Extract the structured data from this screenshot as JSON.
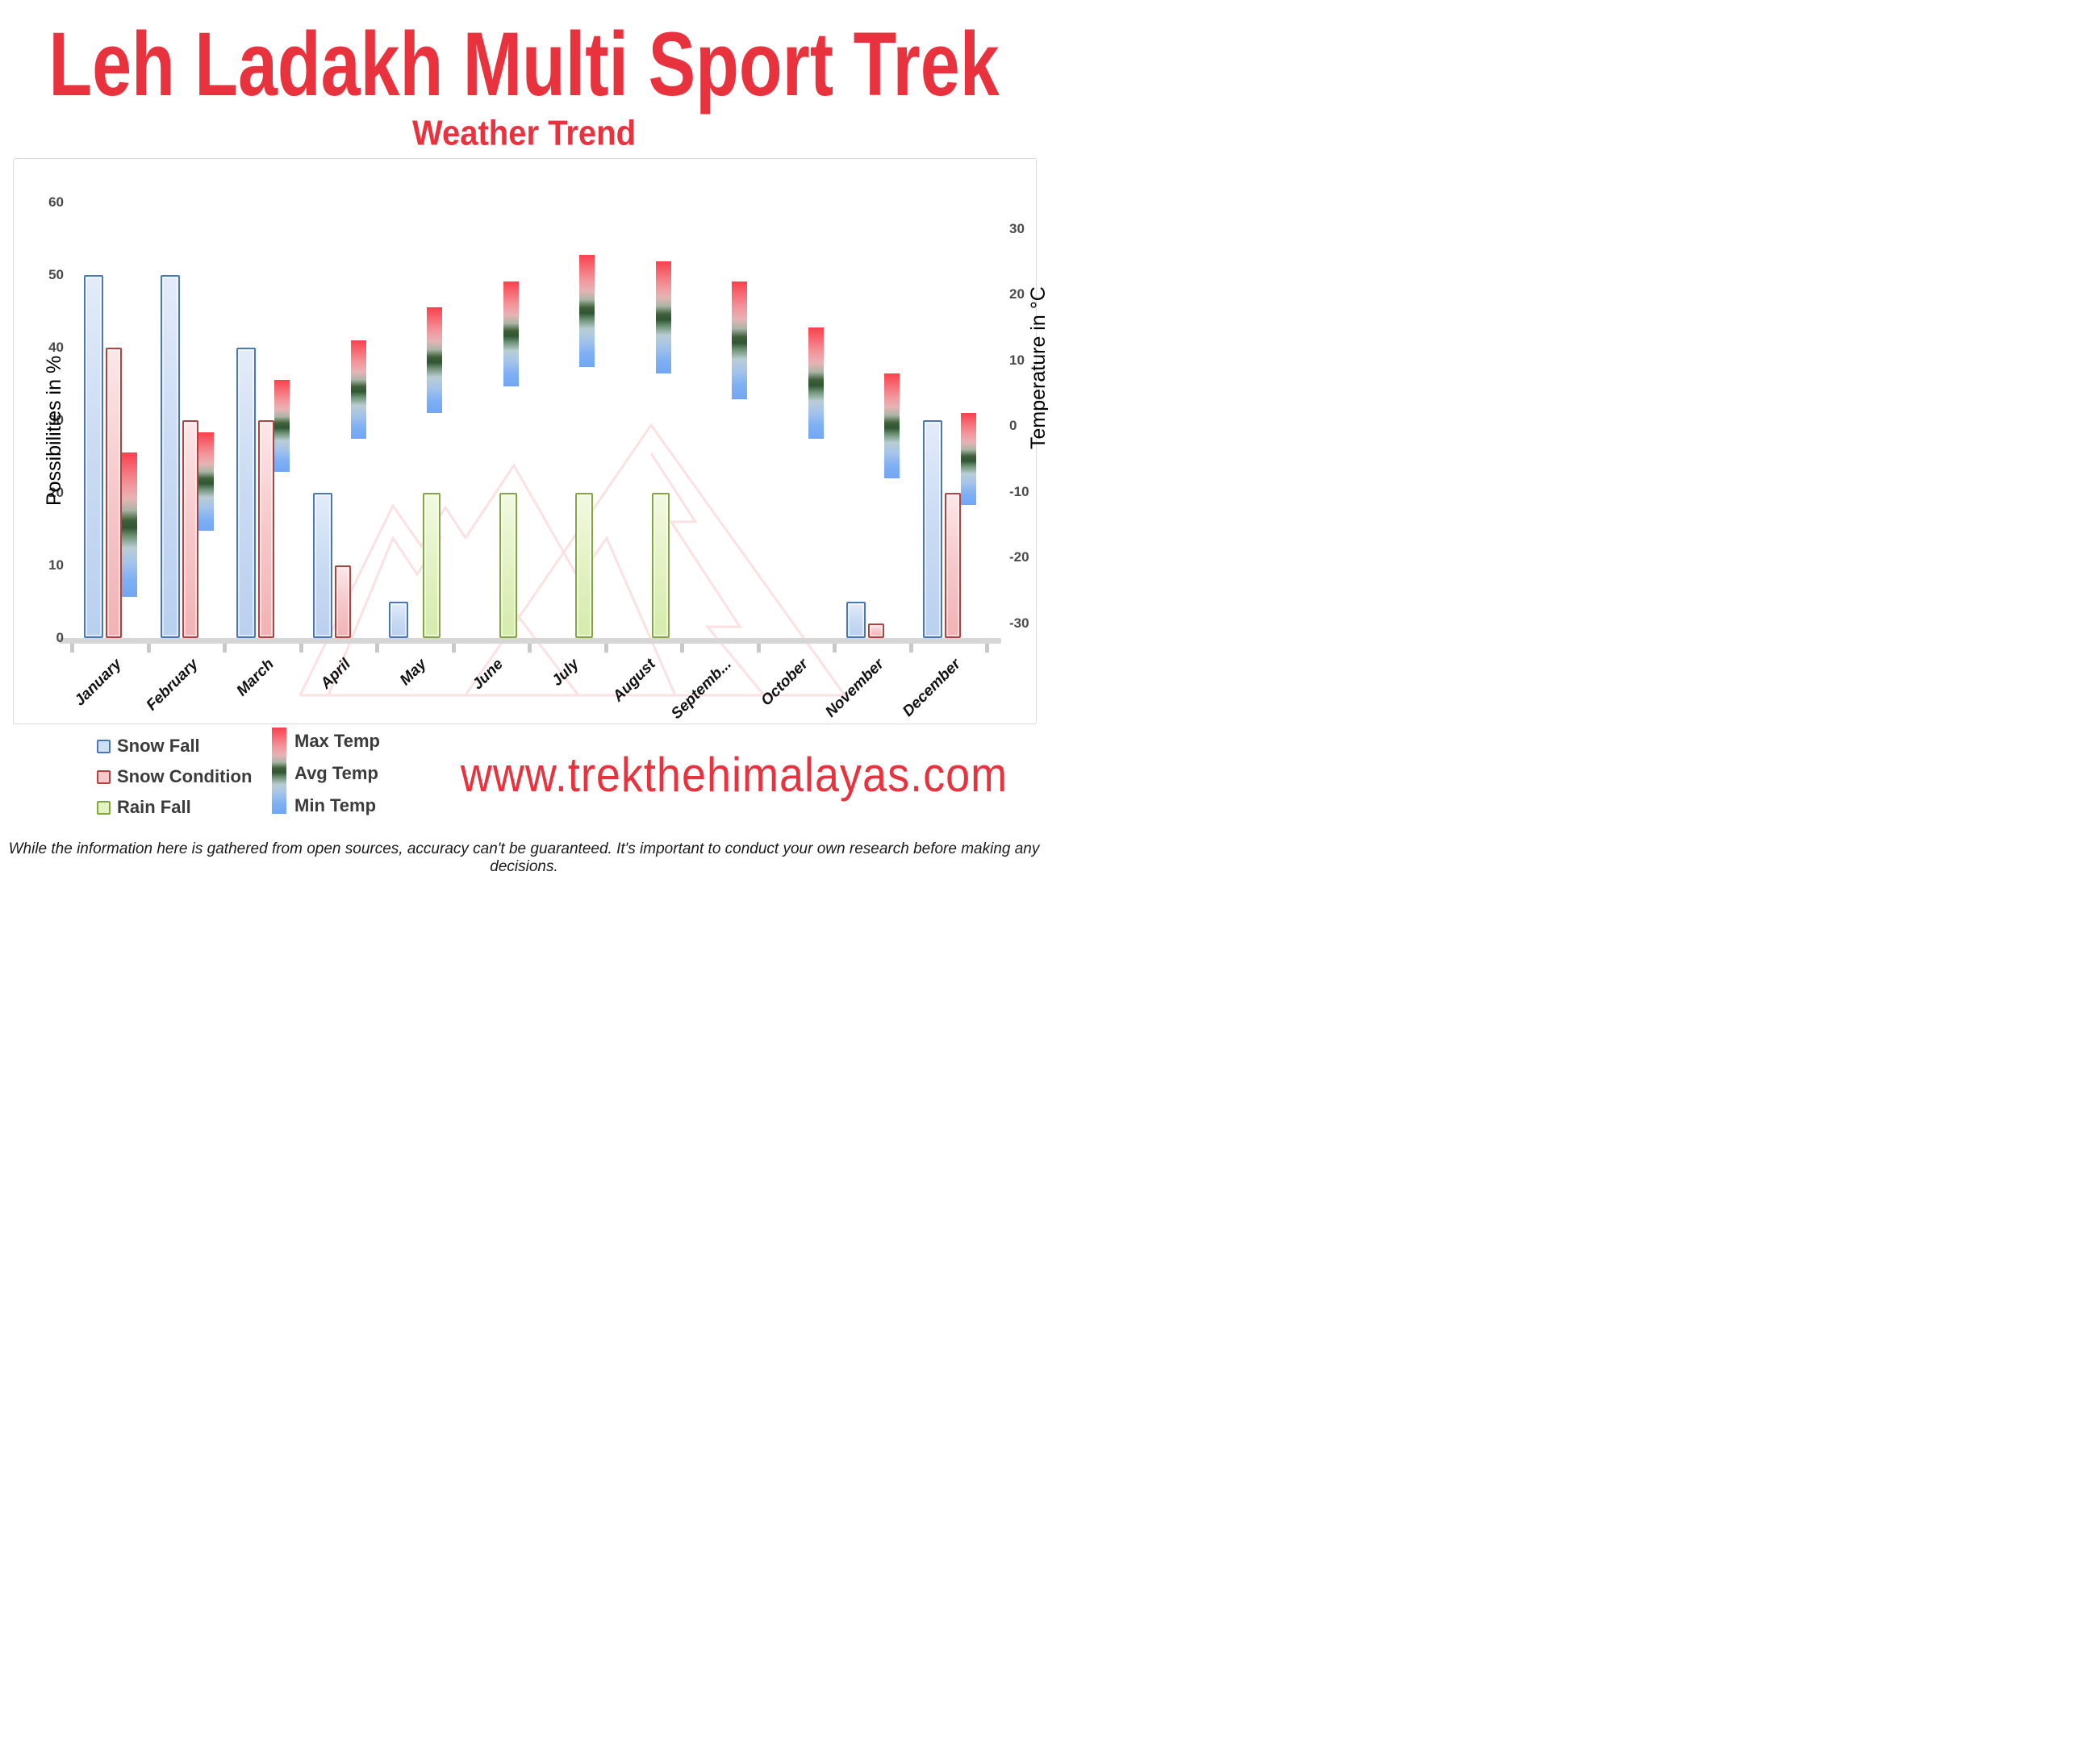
{
  "header": {
    "title": "Leh Ladakh Multi Sport Trek",
    "subtitle": "Weather Trend"
  },
  "chart_data": {
    "type": "bar",
    "title": "Weather Trend",
    "categories": [
      "January",
      "February",
      "March",
      "April",
      "May",
      "June",
      "July",
      "August",
      "September",
      "October",
      "November",
      "December"
    ],
    "category_display_labels": [
      "January",
      "February",
      "March",
      "April",
      "May",
      "June",
      "July",
      "August",
      "Septemb...",
      "October",
      "November",
      "December"
    ],
    "series": [
      {
        "name": "Snow Fall",
        "unit": "%",
        "axis": "left",
        "values": [
          50,
          50,
          40,
          20,
          5,
          0,
          0,
          0,
          0,
          0,
          5,
          30
        ]
      },
      {
        "name": "Snow Condition",
        "unit": "%",
        "axis": "left",
        "values": [
          40,
          30,
          30,
          10,
          0,
          0,
          0,
          0,
          0,
          0,
          2,
          20
        ]
      },
      {
        "name": "Rain Fall",
        "unit": "%",
        "axis": "left",
        "values": [
          0,
          0,
          0,
          0,
          20,
          20,
          20,
          20,
          0,
          0,
          0,
          0
        ]
      },
      {
        "name": "Max Temp",
        "unit": "°C",
        "axis": "right",
        "values": [
          -4,
          -1,
          7,
          13,
          18,
          22,
          26,
          25,
          22,
          15,
          8,
          2
        ]
      },
      {
        "name": "Avg Temp",
        "unit": "°C",
        "axis": "right",
        "values": [
          -15,
          -8.5,
          0,
          5.5,
          10,
          14,
          17.5,
          16.5,
          13,
          6.5,
          0,
          -5
        ]
      },
      {
        "name": "Min Temp",
        "unit": "°C",
        "axis": "right",
        "values": [
          -26,
          -16,
          -7,
          -2,
          2,
          6,
          9,
          8,
          4,
          -2,
          -8,
          -12
        ]
      }
    ],
    "left_axis": {
      "title": "Possibilities in %",
      "ticks": [
        60,
        50,
        40,
        30,
        20,
        10,
        0
      ],
      "range": [
        0,
        60
      ]
    },
    "right_axis": {
      "title": "Temperature in °C",
      "ticks": [
        30,
        20,
        10,
        0,
        -10,
        -20,
        -30
      ],
      "range": [
        -30,
        30
      ]
    },
    "grid": false,
    "legend_position": "bottom-left"
  },
  "legend": {
    "bar_items": [
      {
        "label": "Snow Fall",
        "fill": "#cfe0f5",
        "border": "#4a77b6"
      },
      {
        "label": "Snow Condition",
        "fill": "#f5c8c9",
        "border": "#b04240"
      },
      {
        "label": "Rain Fall",
        "fill": "#e4f3c4",
        "border": "#84a543"
      }
    ],
    "temp_items": [
      {
        "label": "Max Temp"
      },
      {
        "label": "Avg Temp"
      },
      {
        "label": "Min Temp"
      }
    ],
    "temp_gradient": [
      "#f8414d",
      "#2f5633",
      "#72a6f5"
    ]
  },
  "footer": {
    "website": "www.trekthehimalayas.com",
    "disclaimer": "While the information here is gathered from open sources, accuracy can't be guaranteed. It's important to conduct your own research before making any decisions."
  },
  "colors": {
    "accent_red": "#e8333e",
    "snow_fall_border": "#4a77b6",
    "snow_condition_border": "#b04240",
    "rain_fall_border": "#84a543",
    "axis_text": "#4a4a4a",
    "baseline_gray": "#d6d6d6"
  }
}
